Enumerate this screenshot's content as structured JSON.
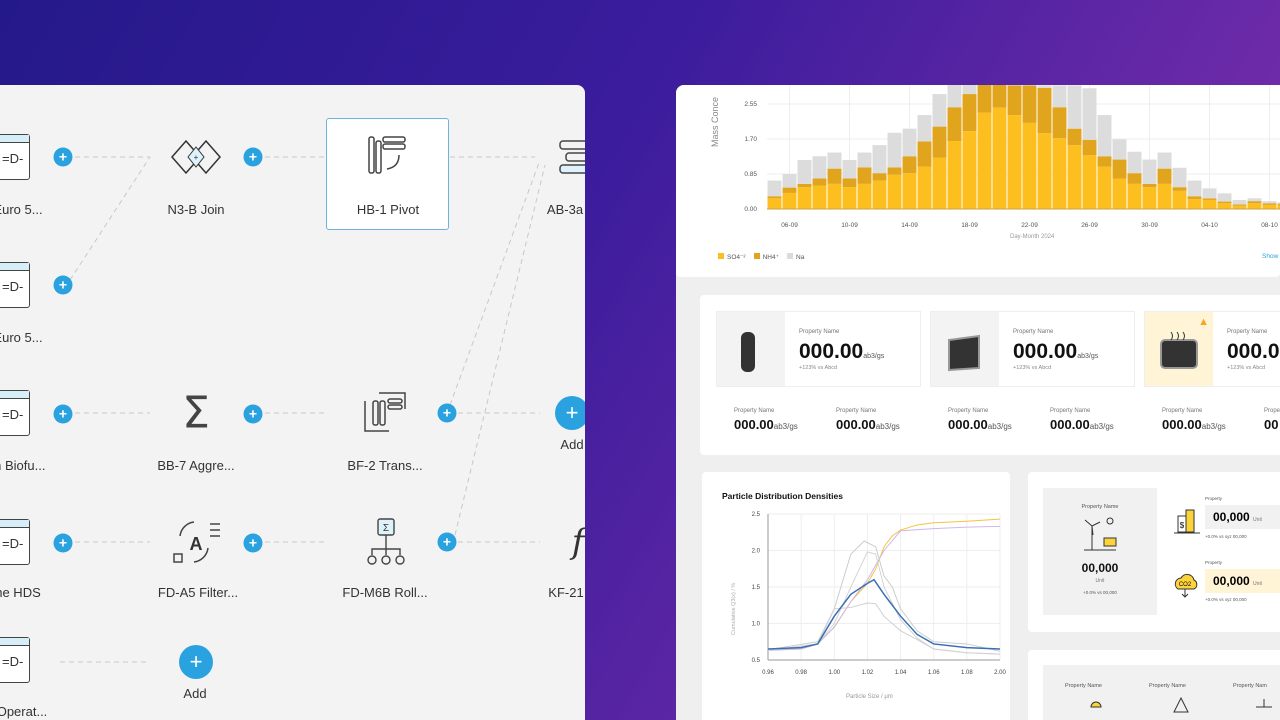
{
  "flow": {
    "nodes": [
      {
        "label": "Euro 5..."
      },
      {
        "label": "Euro 5..."
      },
      {
        "label": "m Biofu..."
      },
      {
        "label": "he HDS"
      },
      {
        "label": "Operat..."
      },
      {
        "label": "N3-B Join"
      },
      {
        "label": "BB-7 Aggre..."
      },
      {
        "label": "FD-A5 Filter..."
      },
      {
        "label": "Add"
      },
      {
        "label": "HB-1 Pivot"
      },
      {
        "label": "BF-2 Trans..."
      },
      {
        "label": "FD-M6B Roll..."
      },
      {
        "label": "AB-3a"
      },
      {
        "label": "Add"
      },
      {
        "label": "KF-21"
      }
    ],
    "plus": "+",
    "accent": "#2aa2e0"
  },
  "bar_chart": {
    "type": "bar",
    "stacked": true,
    "ylabel": "Mass Conce",
    "xlabel": "Day-Month 2024",
    "yticks": [
      "0.00",
      "0.85",
      "1.70",
      "2.55"
    ],
    "xticks": [
      "06-09",
      "10-09",
      "14-09",
      "18-09",
      "22-09",
      "26-09",
      "30-09",
      "04-10",
      "08-10"
    ],
    "legend": [
      {
        "name": "SO4⁻²",
        "color": "#fdbf1f"
      },
      {
        "name": "NH4⁺",
        "color": "#e0a51c"
      },
      {
        "name": "Na",
        "color": "#dcdcdc"
      }
    ],
    "show_link": "Show",
    "categories": [
      "05-09",
      "06-09",
      "07-09",
      "08-09",
      "09-09",
      "10-09",
      "11-09",
      "12-09",
      "13-09",
      "14-09",
      "15-09",
      "16-09",
      "17-09",
      "18-09",
      "19-09",
      "20-09",
      "21-09",
      "22-09",
      "23-09",
      "24-09",
      "25-09",
      "26-09",
      "27-09",
      "28-09",
      "29-09",
      "30-09",
      "01-10",
      "02-10",
      "03-10",
      "04-10",
      "05-10",
      "06-10",
      "07-10",
      "08-10",
      "09-10"
    ],
    "so4": [
      0.26,
      0.39,
      0.53,
      0.57,
      0.61,
      0.53,
      0.61,
      0.69,
      0.83,
      0.87,
      1.03,
      1.25,
      1.65,
      1.89,
      2.34,
      2.46,
      2.28,
      2.09,
      1.84,
      1.72,
      1.55,
      1.31,
      1.03,
      0.74,
      0.61,
      0.53,
      0.61,
      0.44,
      0.24,
      0.22,
      0.14,
      0.08,
      0.14,
      0.1,
      0.1
    ],
    "nh4": [
      0.05,
      0.13,
      0.08,
      0.17,
      0.37,
      0.21,
      0.4,
      0.18,
      0.18,
      0.41,
      0.61,
      0.75,
      0.82,
      0.9,
      0.76,
      0.59,
      0.72,
      0.91,
      1.1,
      0.75,
      0.4,
      0.37,
      0.25,
      0.46,
      0.26,
      0.08,
      0.37,
      0.09,
      0.07,
      0.04,
      0.04,
      0.03,
      0.05,
      0.04,
      0.03
    ],
    "na": [
      0.38,
      0.33,
      0.58,
      0.54,
      0.39,
      0.45,
      0.36,
      0.68,
      0.84,
      0.67,
      0.64,
      0.79,
      0.6,
      0.41,
      0.2,
      0.25,
      0.2,
      0.2,
      0.06,
      0.53,
      1.05,
      1.25,
      1.0,
      0.49,
      0.52,
      0.59,
      0.39,
      0.47,
      0.38,
      0.24,
      0.2,
      0.11,
      0.07,
      0.05,
      0.03
    ],
    "ylim": [
      0,
      3.0
    ]
  },
  "metrics": {
    "cards": [
      {
        "name": "Property Name",
        "value": "000.00",
        "unit": "ab3/gs",
        "delta": "+123% vs Abcd",
        "icon": "valve-icon",
        "warn": false
      },
      {
        "name": "Property Name",
        "value": "000.00",
        "unit": "ab3/gs",
        "delta": "+123% vs Abcd",
        "icon": "tray-icon",
        "warn": false
      },
      {
        "name": "Property Name",
        "value": "000.0",
        "unit": "",
        "delta": "+123% vs Abcd",
        "icon": "heater-icon",
        "warn": true
      }
    ],
    "small": [
      {
        "name": "Property Name",
        "value": "000.00",
        "unit": "ab3/gs"
      },
      {
        "name": "Property Name",
        "value": "000.00",
        "unit": "ab3/gs"
      },
      {
        "name": "Property Name",
        "value": "000.00",
        "unit": "ab3/gs"
      },
      {
        "name": "Property Name",
        "value": "000.00",
        "unit": "ab3/gs"
      },
      {
        "name": "Property Name",
        "value": "000.00",
        "unit": "ab3/gs"
      },
      {
        "name": "Prope",
        "value": "00",
        "unit": ""
      }
    ],
    "warn_color": "#f5a623"
  },
  "chart_data": {
    "type": "line",
    "title": "Particle Distribution Densities",
    "xlabel": "Particle Size / μm",
    "ylabel": "Cumulative Q3(x) / %",
    "xticks": [
      "0.96",
      "0.98",
      "1.00",
      "1.02",
      "1.04",
      "1.06",
      "1.08",
      "2.00"
    ],
    "yticks": [
      "0.5",
      "1.0",
      "1.5",
      "2.0",
      "2.5"
    ],
    "ylim": [
      0.5,
      2.5
    ],
    "grid": true,
    "series": [
      {
        "color": "#f5c242",
        "x": [
          0.96,
          0.98,
          0.99,
          1.0,
          1.01,
          1.02,
          1.025,
          1.03,
          1.035,
          1.04,
          1.05,
          1.06,
          1.08,
          2.0
        ],
        "y": [
          0.64,
          0.65,
          0.72,
          0.95,
          1.3,
          1.55,
          1.75,
          2.05,
          2.2,
          2.28,
          2.35,
          2.38,
          2.4,
          2.43
        ]
      },
      {
        "color": "#cdb8ec",
        "x": [
          0.96,
          0.98,
          0.99,
          1.0,
          1.01,
          1.02,
          1.03,
          1.04,
          1.06,
          1.08,
          2.0
        ],
        "y": [
          0.63,
          0.65,
          0.72,
          0.95,
          1.3,
          1.6,
          2.0,
          2.27,
          2.3,
          2.32,
          2.33
        ]
      },
      {
        "color": "#cccccc",
        "x": [
          0.96,
          0.99,
          1.0,
          1.01,
          1.018,
          1.025,
          1.03,
          1.035,
          1.04,
          1.05,
          1.06,
          1.08,
          2.0
        ],
        "y": [
          0.64,
          0.75,
          1.2,
          1.95,
          2.13,
          2.05,
          1.65,
          1.5,
          1.2,
          0.9,
          0.75,
          0.72,
          0.62
        ]
      },
      {
        "color": "#d4d4d4",
        "x": [
          0.96,
          0.99,
          1.0,
          1.01,
          1.02,
          1.025,
          1.03,
          1.04,
          1.05,
          1.06,
          1.08,
          2.0
        ],
        "y": [
          0.63,
          0.72,
          1.0,
          1.5,
          1.98,
          1.95,
          1.5,
          1.05,
          0.8,
          0.65,
          0.6,
          0.58
        ]
      },
      {
        "color": "#d0d0d0",
        "x": [
          0.96,
          0.99,
          1.0,
          1.01,
          1.02,
          1.025,
          1.03,
          1.04,
          1.05,
          1.06,
          1.08,
          2.0
        ],
        "y": [
          0.63,
          0.72,
          1.2,
          1.22,
          1.28,
          1.27,
          1.1,
          0.9,
          0.78,
          0.65,
          0.6,
          0.58
        ]
      },
      {
        "color": "#3a6fb5",
        "x": [
          0.96,
          0.98,
          0.99,
          1.0,
          1.01,
          1.02,
          1.024,
          1.03,
          1.04,
          1.05,
          1.06,
          1.08,
          2.0
        ],
        "y": [
          0.65,
          0.67,
          0.72,
          1.1,
          1.4,
          1.55,
          1.6,
          1.4,
          1.1,
          0.85,
          0.72,
          0.67,
          0.65
        ]
      }
    ]
  },
  "energy": {
    "main": {
      "name": "Property Name",
      "value": "00,000",
      "unit": "Unit",
      "delta": "+0.0% vs 00,000"
    },
    "rows": [
      {
        "label": "Property",
        "value": "00,000",
        "unit": "Unit",
        "delta": "+0.0% vs xyz 00,000",
        "highlight": false
      },
      {
        "label": "Property",
        "value": "00,000",
        "unit": "Unit",
        "delta": "+0.0% vs xyz 00,000",
        "highlight": true
      }
    ],
    "bottom": [
      "Property Name",
      "Property Name",
      "Property Nam"
    ]
  }
}
